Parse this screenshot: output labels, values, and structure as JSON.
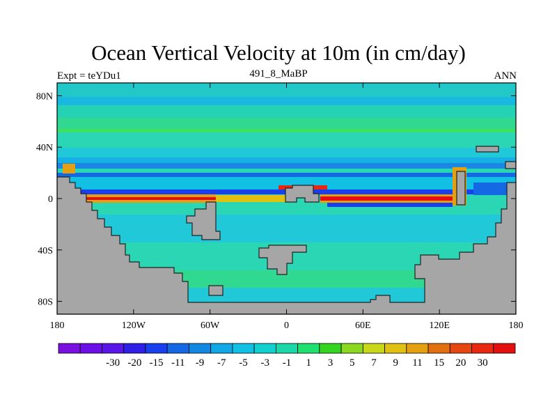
{
  "title": "Ocean Vertical Velocity at 10m (in cm/day)",
  "subtitle_left": "Expt = teYDu1",
  "subtitle_center": "491_8_MaBP",
  "subtitle_right": "ANN",
  "map": {
    "lon_range": [
      -180,
      180
    ],
    "lat_range": [
      -90,
      90
    ],
    "land_color": "#a6a6a6",
    "background_color": "#2ad6b4",
    "lon_ticks": [
      {
        "value": -180,
        "label": "180"
      },
      {
        "value": -120,
        "label": "120W"
      },
      {
        "value": -60,
        "label": "60W"
      },
      {
        "value": 0,
        "label": "0"
      },
      {
        "value": 60,
        "label": "60E"
      },
      {
        "value": 120,
        "label": "120E"
      },
      {
        "value": 180,
        "label": "180"
      }
    ],
    "lat_ticks": [
      {
        "value": 80,
        "label": "80N"
      },
      {
        "value": 40,
        "label": "40N"
      },
      {
        "value": 0,
        "label": "0"
      },
      {
        "value": -40,
        "label": "40S"
      },
      {
        "value": -80,
        "label": "80S"
      }
    ]
  },
  "colorbar": {
    "colors": [
      "#7a10e0",
      "#6a10e6",
      "#5a16e8",
      "#3020e6",
      "#1a40ee",
      "#1468e4",
      "#1088e2",
      "#10a8e6",
      "#12c0e4",
      "#12d0d0",
      "#1ad8a8",
      "#20e070",
      "#34d420",
      "#8ad820",
      "#c8d818",
      "#e0c010",
      "#e4a010",
      "#e27010",
      "#e44810",
      "#e82810",
      "#e41010"
    ],
    "labels": [
      "-30",
      "-20",
      "-15",
      "-11",
      "-9",
      "-7",
      "-5",
      "-3",
      "-1",
      "1",
      "3",
      "5",
      "7",
      "9",
      "11",
      "15",
      "20",
      "30"
    ]
  }
}
